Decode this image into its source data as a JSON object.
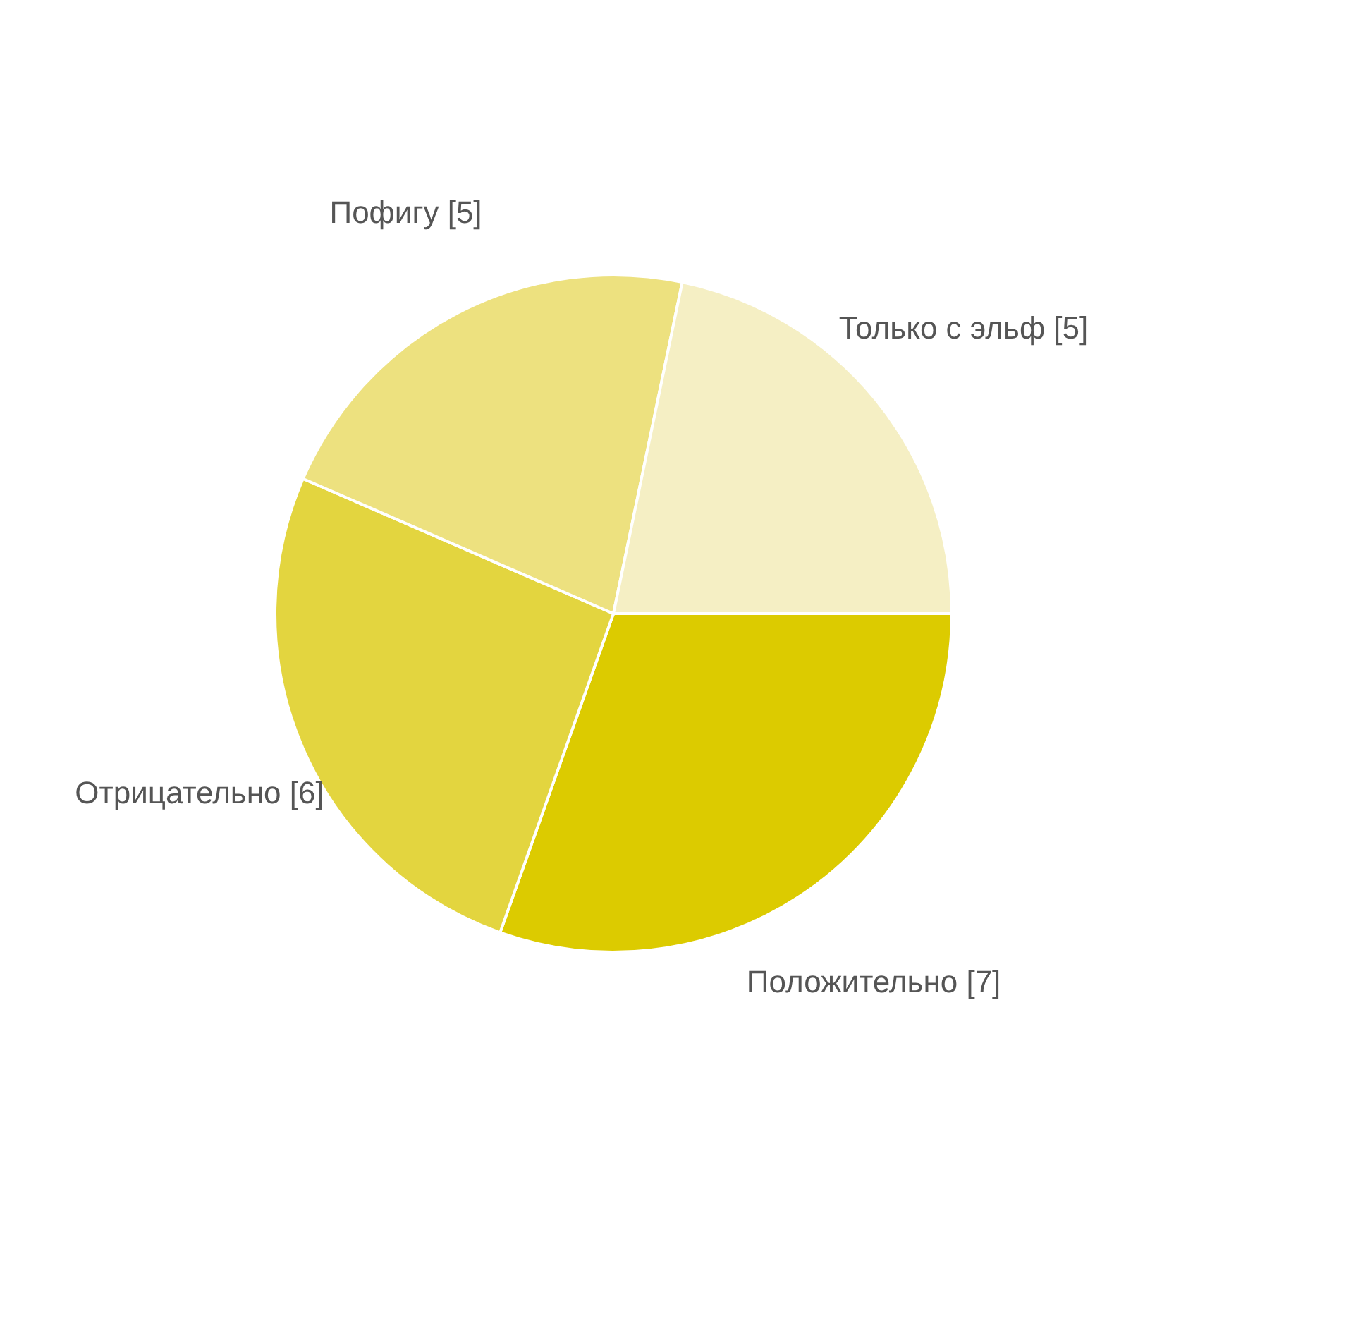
{
  "chart_data": {
    "type": "pie",
    "categories": [
      "Положительно [7]",
      "Отрицательно [6]",
      "Пофигу [5]",
      "Только с эльф [5]"
    ],
    "values": [
      7,
      6,
      5,
      5
    ],
    "colors": [
      "#dccb00",
      "#e3d53f",
      "#ede17f",
      "#f5efc4"
    ]
  }
}
